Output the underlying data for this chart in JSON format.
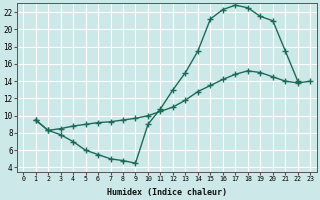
{
  "xlabel": "Humidex (Indice chaleur)",
  "bg_color": "#cde8e8",
  "grid_color": "#ffffff",
  "line_color": "#1a6b5a",
  "marker": "+",
  "markersize": 4,
  "linewidth": 1.0,
  "xlim": [
    -0.5,
    23.5
  ],
  "ylim": [
    3.5,
    23
  ],
  "xticks": [
    0,
    1,
    2,
    3,
    4,
    5,
    6,
    7,
    8,
    9,
    10,
    11,
    12,
    13,
    14,
    15,
    16,
    17,
    18,
    19,
    20,
    21,
    22,
    23
  ],
  "yticks": [
    4,
    6,
    8,
    10,
    12,
    14,
    16,
    18,
    20,
    22
  ],
  "curve1_x": [
    1,
    2,
    3,
    4,
    5,
    6,
    7,
    8,
    9,
    10,
    11,
    12,
    13,
    14,
    15,
    16,
    17,
    18,
    19,
    20,
    21,
    22,
    23
  ],
  "curve1_y": [
    9.5,
    8.3,
    8.5,
    8.8,
    9.0,
    9.2,
    9.3,
    9.5,
    9.7,
    10.0,
    10.5,
    11.0,
    11.8,
    12.8,
    13.5,
    14.2,
    14.8,
    15.2,
    15.0,
    14.5,
    14.0,
    13.8,
    14.0
  ],
  "curve2_x": [
    1,
    2,
    3,
    4,
    5,
    6,
    7,
    8,
    9,
    10,
    11,
    12,
    13,
    14,
    15,
    16,
    17,
    18,
    19,
    20,
    21,
    22
  ],
  "curve2_y": [
    9.5,
    8.3,
    7.8,
    7.0,
    6.0,
    5.5,
    5.0,
    4.8,
    4.5,
    9.0,
    10.8,
    13.0,
    15.0,
    17.5,
    21.2,
    22.3,
    22.8,
    22.5,
    21.5,
    21.0,
    17.5,
    14.0
  ]
}
